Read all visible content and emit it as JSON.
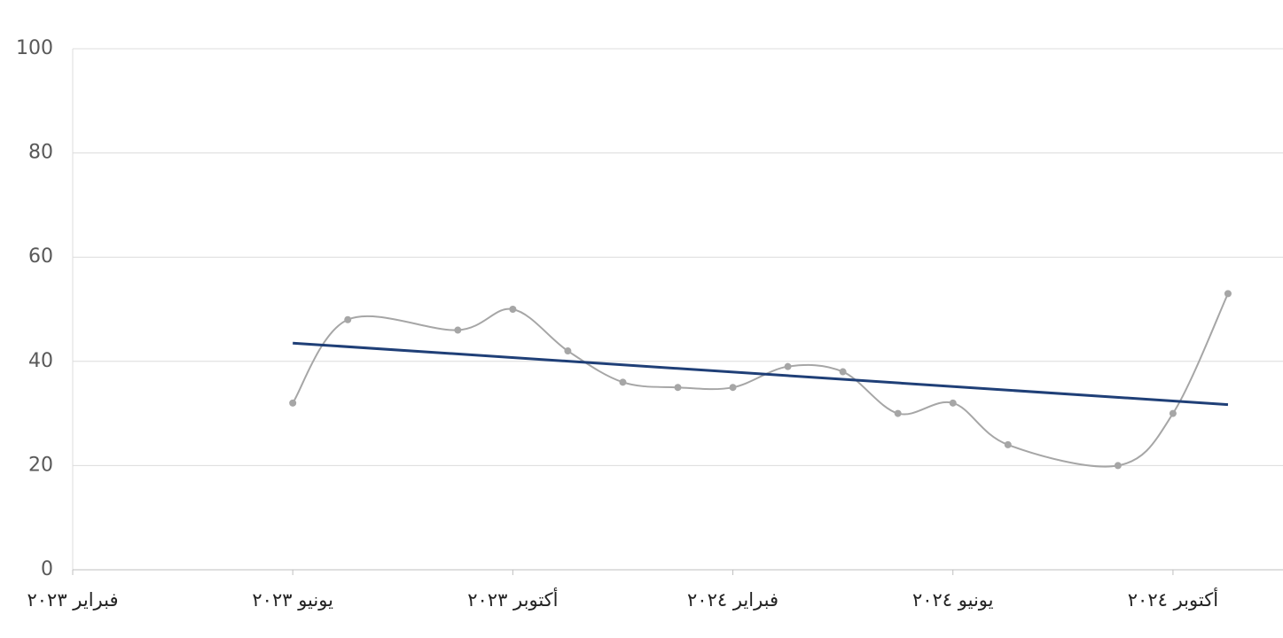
{
  "chart_data": {
    "type": "line",
    "x": [
      "2023-06",
      "2023-07",
      "2023-09",
      "2023-10",
      "2023-11",
      "2023-12",
      "2024-01",
      "2024-02",
      "2024-03",
      "2024-04",
      "2024-05",
      "2024-06",
      "2024-07",
      "2024-09",
      "2024-10",
      "2024-11"
    ],
    "series": [
      {
        "color": "#a6a6a6",
        "values": [
          32,
          48,
          46,
          50,
          42,
          36,
          35,
          35,
          39,
          38,
          30,
          32,
          24,
          20,
          30,
          53
        ]
      }
    ],
    "trendline": {
      "color": "#1f3f77",
      "x": [
        "2023-06",
        "2024-11"
      ],
      "values": [
        43.5,
        31.7
      ]
    },
    "xlim": [
      "2023-02",
      "2024-12"
    ],
    "xticks": [
      {
        "value": "2023-02",
        "label": "فبراير ٢٠٢٣"
      },
      {
        "value": "2023-06",
        "label": "يونيو ٢٠٢٣"
      },
      {
        "value": "2023-10",
        "label": "أكتوبر ٢٠٢٣"
      },
      {
        "value": "2024-02",
        "label": "فبراير ٢٠٢٤"
      },
      {
        "value": "2024-06",
        "label": "يونيو ٢٠٢٤"
      },
      {
        "value": "2024-10",
        "label": "أكتوبر ٢٠٢٤"
      }
    ],
    "ylim": [
      0,
      100
    ],
    "yticks": [
      0,
      20,
      40,
      60,
      80,
      100
    ],
    "grid": true
  }
}
